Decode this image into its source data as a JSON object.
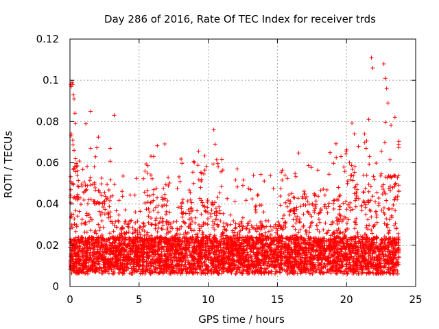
{
  "chart_data": {
    "type": "scatter",
    "title": "Day 286 of 2016, Rate Of TEC Index for receiver trds",
    "xlabel": "GPS time / hours",
    "ylabel": "ROTI / TECUs",
    "xlim": [
      0,
      25
    ],
    "ylim": [
      0,
      0.12
    ],
    "x_ticks": [
      0,
      5,
      10,
      15,
      20,
      25
    ],
    "x_tick_labels": [
      "0",
      "5",
      "10",
      "15",
      "20",
      "25"
    ],
    "y_ticks": [
      0,
      0.02,
      0.04,
      0.06,
      0.08,
      0.1,
      0.12
    ],
    "y_tick_labels": [
      "0",
      "0.02",
      "0.04",
      "0.06",
      "0.08",
      "0.1",
      "0.12"
    ],
    "grid": true,
    "marker": "+",
    "color": "#ff0000",
    "data_range": [
      0,
      23.8
    ],
    "series": [
      {
        "name": "trds",
        "x": [
          0.05,
          0.1,
          0.15,
          0.2,
          0.25,
          0.3,
          0.35,
          0.4,
          0.1,
          0.2,
          0.3,
          0.4,
          0.35,
          1.5,
          3.2,
          10.4,
          10.5,
          12.1,
          12.5,
          19.6,
          21.3,
          21.6,
          21.8,
          21.9,
          22.7,
          22.8,
          22.9,
          23.0,
          23.5
        ],
        "y": [
          0.098,
          0.097,
          0.099,
          0.098,
          0.093,
          0.091,
          0.084,
          0.079,
          0.074,
          0.071,
          0.066,
          0.062,
          0.058,
          0.067,
          0.083,
          0.076,
          0.069,
          0.057,
          0.049,
          0.063,
          0.074,
          0.081,
          0.111,
          0.106,
          0.108,
          0.101,
          0.096,
          0.089,
          0.082
        ]
      }
    ]
  }
}
